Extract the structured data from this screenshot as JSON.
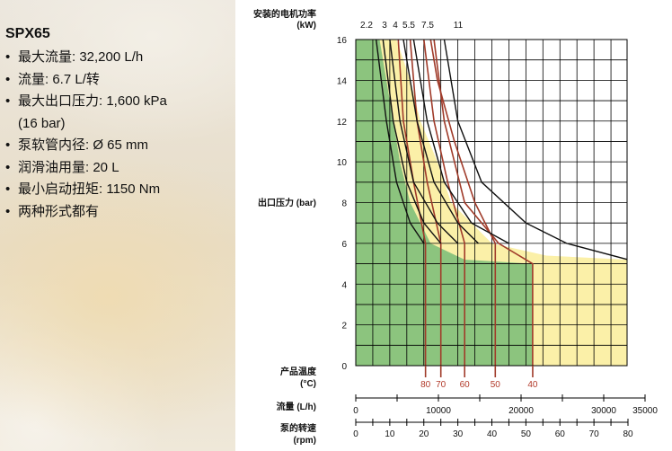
{
  "specs": {
    "model": "SPX65",
    "items": [
      "最大流量: 32,200 L/h",
      "流量: 6.7 L/转",
      "最大出口压力: 1,600 kPa",
      "(16 bar)",
      "泵软管内径: Ø 65 mm",
      "润滑油用量: 20 L",
      "最小启动扭矩: 1150 Nm",
      "两种形式都有"
    ]
  },
  "chart_data": {
    "type": "line",
    "power_label": [
      "安装的电机功率",
      "(kW)"
    ],
    "power_values": [
      "2.2",
      "3",
      "4",
      "5.5",
      "7.5",
      "11"
    ],
    "ylabel": "出口压力 (bar)",
    "ylim": [
      0,
      16
    ],
    "y_ticks": [
      "0",
      "2",
      "4",
      "6",
      "8",
      "10",
      "12",
      "14",
      "16"
    ],
    "temp_label": [
      "产品温度",
      "(°C)"
    ],
    "temp_values": [
      "80",
      "70",
      "60",
      "50",
      "40"
    ],
    "flow_label": "流量 (L/h)",
    "flow_ticks": [
      "0",
      "10000",
      "20000",
      "30000",
      "35000"
    ],
    "speed_label": [
      "泵的转速",
      "(rpm)"
    ],
    "speed_ticks": [
      "0",
      "10",
      "20",
      "30",
      "40",
      "50",
      "60",
      "70",
      "80"
    ],
    "rpm_max": 80,
    "grid": true,
    "colors": {
      "green": "#8cc47e",
      "yellow": "#fbf0a8",
      "temp_curve": "#a03b2a",
      "power_curve": "#111111",
      "temp_text": "#b23a2a"
    },
    "regions": {
      "yellow_envelope": [
        [
          3,
          16
        ],
        [
          12,
          16
        ],
        [
          16,
          14
        ],
        [
          19,
          12
        ],
        [
          24,
          10
        ],
        [
          28,
          8
        ],
        [
          40,
          6
        ],
        [
          56,
          5.4
        ],
        [
          80,
          5.2
        ],
        [
          80,
          0
        ],
        [
          0,
          0
        ],
        [
          0,
          16
        ]
      ],
      "green_envelope": [
        [
          0,
          16
        ],
        [
          7,
          16
        ],
        [
          9,
          14
        ],
        [
          11,
          12
        ],
        [
          13,
          10
        ],
        [
          16,
          8
        ],
        [
          22,
          6
        ],
        [
          32,
          5.2
        ],
        [
          52,
          5
        ],
        [
          52,
          0
        ],
        [
          0,
          0
        ]
      ]
    },
    "temperature_curves": [
      {
        "temp": "80",
        "points": [
          [
            20.5,
            0
          ],
          [
            20.5,
            6
          ],
          [
            17,
            9
          ],
          [
            14,
            12
          ],
          [
            12.5,
            16
          ]
        ]
      },
      {
        "temp": "70",
        "points": [
          [
            25,
            0
          ],
          [
            25,
            6
          ],
          [
            21,
            9
          ],
          [
            18,
            12
          ],
          [
            16,
            16
          ]
        ]
      },
      {
        "temp": "60",
        "points": [
          [
            32,
            0
          ],
          [
            32,
            6
          ],
          [
            27,
            9
          ],
          [
            23,
            12
          ],
          [
            20,
            16
          ]
        ]
      },
      {
        "temp": "50",
        "points": [
          [
            41,
            0
          ],
          [
            41,
            6
          ],
          [
            35,
            8
          ],
          [
            29,
            11
          ],
          [
            24,
            14
          ],
          [
            22,
            16
          ]
        ]
      },
      {
        "temp": "40",
        "points": [
          [
            52,
            0
          ],
          [
            52,
            5
          ],
          [
            42,
            6
          ],
          [
            32,
            8
          ],
          [
            26,
            12
          ],
          [
            23,
            16
          ]
        ]
      }
    ],
    "power_curves": [
      {
        "kw": "2.2",
        "points": [
          [
            6,
            16
          ],
          [
            9,
            12
          ],
          [
            12,
            9
          ],
          [
            16,
            7
          ],
          [
            20,
            6
          ]
        ]
      },
      {
        "kw": "3",
        "points": [
          [
            8,
            16
          ],
          [
            11,
            12
          ],
          [
            15,
            9
          ],
          [
            20,
            7
          ],
          [
            25,
            6
          ]
        ]
      },
      {
        "kw": "4",
        "points": [
          [
            10,
            16
          ],
          [
            13,
            12
          ],
          [
            17,
            9
          ],
          [
            24,
            7
          ],
          [
            30,
            6
          ]
        ]
      },
      {
        "kw": "5.5",
        "points": [
          [
            14,
            16
          ],
          [
            18,
            12
          ],
          [
            23,
            9
          ],
          [
            30,
            7
          ],
          [
            36,
            6
          ]
        ]
      },
      {
        "kw": "7.5",
        "points": [
          [
            17,
            16
          ],
          [
            21,
            12
          ],
          [
            26,
            9
          ],
          [
            34,
            7
          ],
          [
            45,
            6
          ]
        ]
      },
      {
        "kw": "11",
        "points": [
          [
            26,
            16
          ],
          [
            30,
            12
          ],
          [
            37,
            9
          ],
          [
            50,
            7
          ],
          [
            62,
            6
          ],
          [
            80,
            5.2
          ]
        ]
      }
    ]
  }
}
